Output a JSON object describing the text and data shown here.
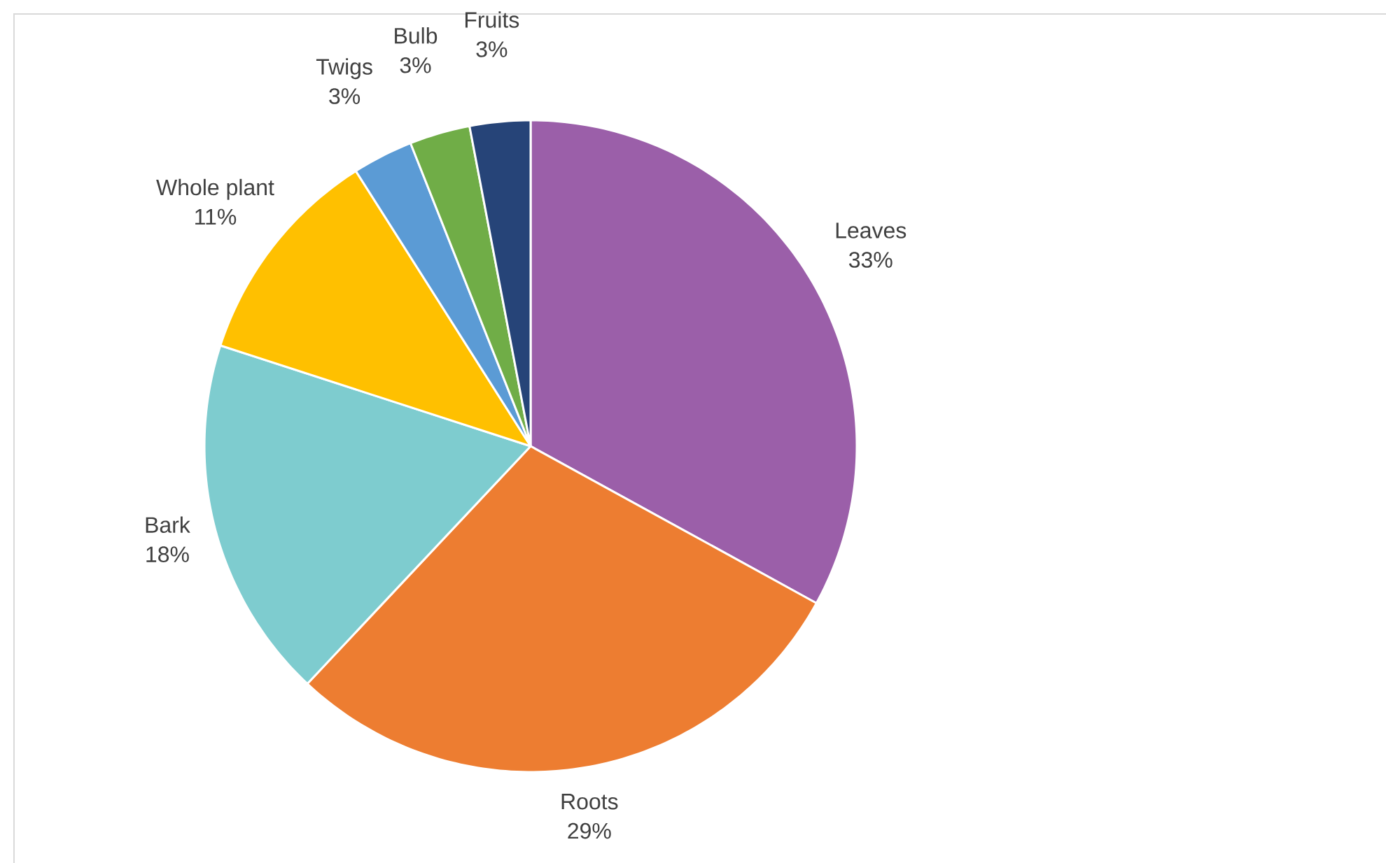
{
  "chart_data": {
    "type": "pie",
    "categories": [
      "Leaves",
      "Roots",
      "Bark",
      "Whole plant",
      "Twigs",
      "Bulb",
      "Fruits"
    ],
    "values": [
      33,
      29,
      18,
      11,
      3,
      3,
      3
    ],
    "value_labels": [
      "33%",
      "29%",
      "18%",
      "11%",
      "3%",
      "3%",
      "3%"
    ],
    "colors": [
      "#9b5fa9",
      "#ed7d31",
      "#7ecccf",
      "#ffc000",
      "#5b9bd5",
      "#70ad47",
      "#264478"
    ]
  }
}
